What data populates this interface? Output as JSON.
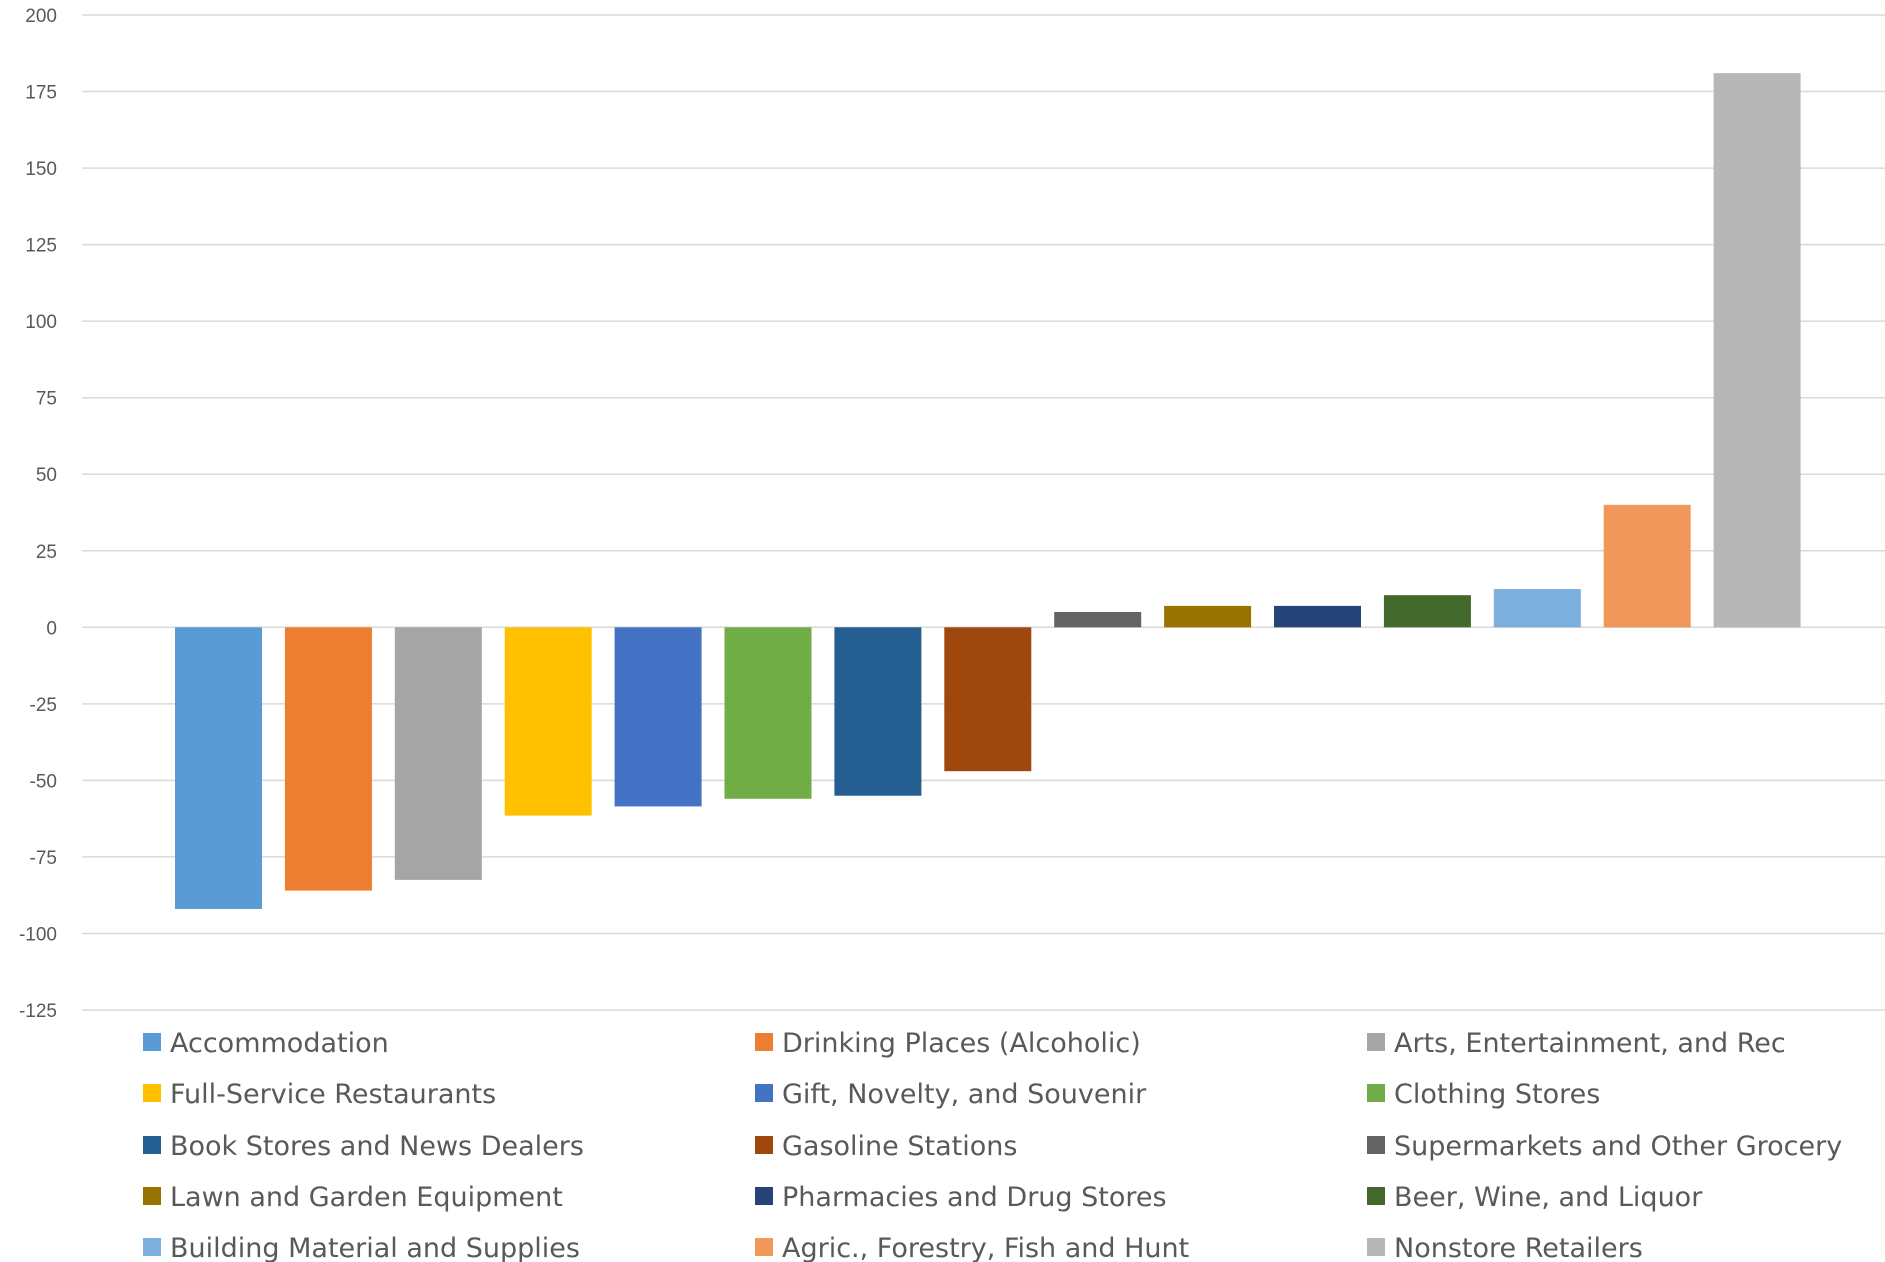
{
  "chart_data": {
    "type": "bar",
    "title": "",
    "xlabel": "",
    "ylabel": "",
    "ylim": [
      -125,
      200
    ],
    "yticks": [
      200,
      175,
      150,
      125,
      100,
      75,
      50,
      25,
      0,
      -25,
      -50,
      -75,
      -100,
      -125
    ],
    "grid": true,
    "legend_position": "bottom",
    "series": [
      {
        "name": "Accommodation",
        "value": -92,
        "color": "#5b9bd5"
      },
      {
        "name": "Drinking Places (Alcoholic)",
        "value": -86,
        "color": "#ed7d31"
      },
      {
        "name": "Arts, Entertainment, and Rec",
        "value": -82.5,
        "color": "#a5a5a5"
      },
      {
        "name": "Full-Service Restaurants",
        "value": -61.5,
        "color": "#ffc000"
      },
      {
        "name": "Gift, Novelty, and Souvenir",
        "value": -58.5,
        "color": "#4472c4"
      },
      {
        "name": "Clothing Stores",
        "value": -56,
        "color": "#70ad47"
      },
      {
        "name": "Book Stores and News Dealers",
        "value": -55,
        "color": "#255e91"
      },
      {
        "name": "Gasoline Stations",
        "value": -47,
        "color": "#9e480e"
      },
      {
        "name": "Supermarkets and Other Grocery",
        "value": 5,
        "color": "#636363"
      },
      {
        "name": "Lawn and Garden Equipment",
        "value": 7,
        "color": "#997300"
      },
      {
        "name": "Pharmacies and Drug Stores",
        "value": 7,
        "color": "#264478"
      },
      {
        "name": "Beer, Wine, and Liquor",
        "value": 10.5,
        "color": "#43682b"
      },
      {
        "name": "Building Material and Supplies",
        "value": 12.5,
        "color": "#7cafdd"
      },
      {
        "name": "Agric., Forestry, Fish and Hunt",
        "value": 40,
        "color": "#f1975a"
      },
      {
        "name": "Nonstore Retailers",
        "value": 181,
        "color": "#b7b7b7"
      }
    ]
  }
}
